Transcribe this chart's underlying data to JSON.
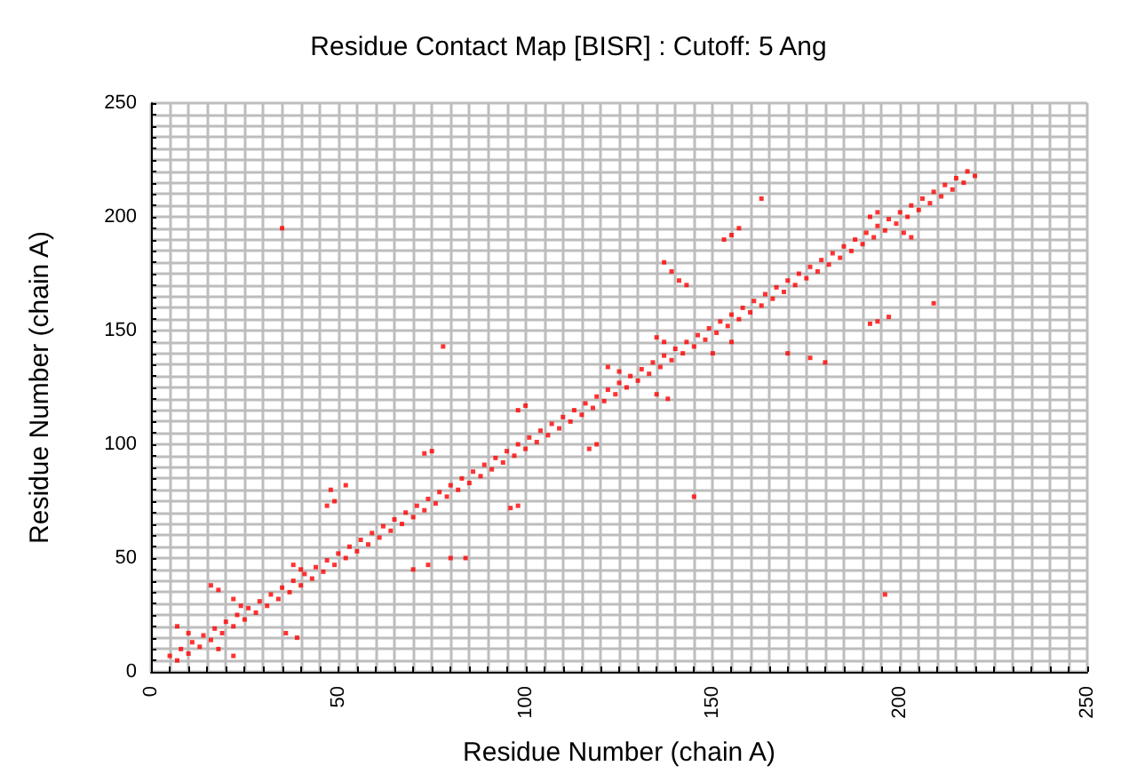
{
  "chart_data": {
    "type": "scatter",
    "title": "Residue Contact Map [BISR] : Cutoff: 5 Ang",
    "xlabel": "Residue Number (chain A)",
    "ylabel": "Residue Number (chain A)",
    "xlim": [
      0,
      250
    ],
    "ylim": [
      0,
      250
    ],
    "xticks": [
      0,
      {
        "value": 5,
        "label": null
      },
      {
        "value": 10,
        "label": null
      },
      {
        "value": 15,
        "label": null
      },
      {
        "value": 20,
        "label": null
      },
      {
        "value": 25,
        "label": null
      },
      {
        "value": 30,
        "label": null
      },
      {
        "value": 35,
        "label": null
      },
      {
        "value": 40,
        "label": null
      },
      {
        "value": 45,
        "label": null
      },
      50,
      {
        "value": 55,
        "label": null
      },
      {
        "value": 60,
        "label": null
      },
      {
        "value": 65,
        "label": null
      },
      {
        "value": 70,
        "label": null
      },
      {
        "value": 75,
        "label": null
      },
      {
        "value": 80,
        "label": null
      },
      {
        "value": 85,
        "label": null
      },
      {
        "value": 90,
        "label": null
      },
      {
        "value": 95,
        "label": null
      },
      100,
      {
        "value": 105,
        "label": null
      },
      {
        "value": 110,
        "label": null
      },
      {
        "value": 115,
        "label": null
      },
      {
        "value": 120,
        "label": null
      },
      {
        "value": 125,
        "label": null
      },
      {
        "value": 130,
        "label": null
      },
      {
        "value": 135,
        "label": null
      },
      {
        "value": 140,
        "label": null
      },
      {
        "value": 145,
        "label": null
      },
      150,
      {
        "value": 155,
        "label": null
      },
      {
        "value": 160,
        "label": null
      },
      {
        "value": 165,
        "label": null
      },
      {
        "value": 170,
        "label": null
      },
      {
        "value": 175,
        "label": null
      },
      {
        "value": 180,
        "label": null
      },
      {
        "value": 185,
        "label": null
      },
      {
        "value": 190,
        "label": null
      },
      {
        "value": 195,
        "label": null
      },
      200,
      {
        "value": 205,
        "label": null
      },
      {
        "value": 210,
        "label": null
      },
      {
        "value": 215,
        "label": null
      },
      {
        "value": 220,
        "label": null
      },
      {
        "value": 225,
        "label": null
      },
      {
        "value": 230,
        "label": null
      },
      {
        "value": 235,
        "label": null
      },
      {
        "value": 240,
        "label": null
      },
      {
        "value": 245,
        "label": null
      },
      250
    ],
    "yticks": [
      0,
      {
        "value": 5,
        "label": null
      },
      {
        "value": 10,
        "label": null
      },
      {
        "value": 15,
        "label": null
      },
      {
        "value": 20,
        "label": null
      },
      {
        "value": 25,
        "label": null
      },
      {
        "value": 30,
        "label": null
      },
      {
        "value": 35,
        "label": null
      },
      {
        "value": 40,
        "label": null
      },
      {
        "value": 45,
        "label": null
      },
      50,
      {
        "value": 55,
        "label": null
      },
      {
        "value": 60,
        "label": null
      },
      {
        "value": 65,
        "label": null
      },
      {
        "value": 70,
        "label": null
      },
      {
        "value": 75,
        "label": null
      },
      {
        "value": 80,
        "label": null
      },
      {
        "value": 85,
        "label": null
      },
      {
        "value": 90,
        "label": null
      },
      {
        "value": 95,
        "label": null
      },
      100,
      {
        "value": 105,
        "label": null
      },
      {
        "value": 110,
        "label": null
      },
      {
        "value": 115,
        "label": null
      },
      {
        "value": 120,
        "label": null
      },
      {
        "value": 125,
        "label": null
      },
      {
        "value": 130,
        "label": null
      },
      {
        "value": 135,
        "label": null
      },
      {
        "value": 140,
        "label": null
      },
      {
        "value": 145,
        "label": null
      },
      150,
      {
        "value": 155,
        "label": null
      },
      {
        "value": 160,
        "label": null
      },
      {
        "value": 165,
        "label": null
      },
      {
        "value": 170,
        "label": null
      },
      {
        "value": 175,
        "label": null
      },
      {
        "value": 180,
        "label": null
      },
      {
        "value": 185,
        "label": null
      },
      {
        "value": 190,
        "label": null
      },
      {
        "value": 195,
        "label": null
      },
      200,
      {
        "value": 205,
        "label": null
      },
      {
        "value": 210,
        "label": null
      },
      {
        "value": 215,
        "label": null
      },
      {
        "value": 220,
        "label": null
      },
      {
        "value": 225,
        "label": null
      },
      {
        "value": 230,
        "label": null
      },
      {
        "value": 235,
        "label": null
      },
      {
        "value": 240,
        "label": null
      },
      {
        "value": 245,
        "label": null
      },
      250
    ],
    "grid": true,
    "marker": "square",
    "series": [
      {
        "color": "#ff0000",
        "x": [
          5,
          8,
          11,
          14,
          17,
          20,
          23,
          26,
          29,
          32,
          35,
          38,
          41,
          44,
          47,
          50,
          53,
          56,
          59,
          62,
          65,
          68,
          71,
          74,
          77,
          80,
          83,
          86,
          89,
          92,
          95,
          98,
          101,
          104,
          107,
          110,
          113,
          116,
          119,
          122,
          125,
          128,
          131,
          134,
          137,
          140,
          143,
          146,
          149,
          152,
          155,
          158,
          161,
          164,
          167,
          170,
          173,
          176,
          179,
          182,
          185,
          188,
          191,
          194,
          197,
          200,
          203,
          206,
          209,
          212,
          215,
          218,
          7,
          10,
          13,
          16,
          19,
          22,
          25,
          28,
          31,
          34,
          37,
          40,
          43,
          46,
          49,
          52,
          55,
          58,
          61,
          64,
          67,
          70,
          73,
          76,
          79,
          82,
          85,
          88,
          91,
          94,
          97,
          100,
          103,
          106,
          109,
          112,
          115,
          118,
          121,
          124,
          127,
          130,
          133,
          136,
          139,
          142,
          145,
          148,
          151,
          154,
          157,
          160,
          163,
          166,
          169,
          172,
          175,
          178,
          181,
          184,
          187,
          190,
          193,
          196,
          199,
          202,
          205,
          208,
          211,
          214,
          217,
          220,
          35,
          7,
          10,
          16,
          18,
          22,
          24,
          38,
          40,
          36,
          39,
          18,
          22,
          47,
          49,
          48,
          52,
          70,
          74,
          80,
          84,
          73,
          75,
          78,
          96,
          98,
          98,
          100,
          117,
          119,
          122,
          125,
          135,
          137,
          135,
          138,
          137,
          139,
          141,
          143,
          145,
          153,
          155,
          157,
          163,
          150,
          155,
          170,
          176,
          180,
          192,
          194,
          197,
          209,
          192,
          194,
          196,
          201,
          203
        ],
        "values": [
          7,
          10,
          13,
          16,
          19,
          22,
          25,
          28,
          31,
          34,
          37,
          40,
          43,
          46,
          49,
          52,
          55,
          58,
          61,
          64,
          67,
          70,
          73,
          76,
          79,
          82,
          85,
          88,
          91,
          94,
          97,
          100,
          103,
          106,
          109,
          112,
          115,
          118,
          121,
          124,
          127,
          130,
          133,
          136,
          139,
          142,
          145,
          148,
          151,
          154,
          157,
          160,
          163,
          166,
          169,
          172,
          175,
          178,
          181,
          184,
          187,
          190,
          193,
          196,
          199,
          202,
          205,
          208,
          211,
          214,
          217,
          220,
          5,
          8,
          11,
          14,
          17,
          20,
          23,
          26,
          29,
          32,
          35,
          38,
          41,
          44,
          47,
          50,
          53,
          56,
          59,
          62,
          65,
          68,
          71,
          74,
          77,
          80,
          83,
          86,
          89,
          92,
          95,
          98,
          101,
          104,
          107,
          110,
          113,
          116,
          119,
          122,
          125,
          128,
          131,
          134,
          137,
          140,
          143,
          146,
          149,
          152,
          155,
          158,
          161,
          164,
          167,
          170,
          173,
          176,
          179,
          182,
          185,
          188,
          191,
          194,
          197,
          200,
          203,
          206,
          209,
          212,
          215,
          218,
          195,
          20,
          17,
          38,
          36,
          32,
          29,
          47,
          45,
          17,
          15,
          10,
          7,
          73,
          75,
          80,
          82,
          45,
          47,
          50,
          50,
          96,
          97,
          143,
          72,
          73,
          115,
          117,
          98,
          100,
          134,
          132,
          147,
          145,
          122,
          120,
          180,
          176,
          172,
          170,
          77,
          190,
          192,
          195,
          208,
          140,
          145,
          140,
          138,
          136,
          153,
          154,
          156,
          162,
          200,
          202,
          34,
          193,
          191
        ]
      }
    ]
  }
}
